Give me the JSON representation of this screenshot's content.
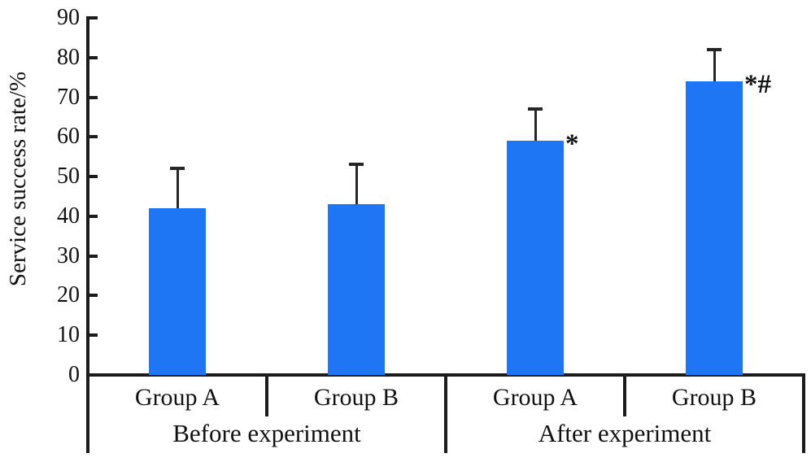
{
  "figure": {
    "background": "#ffffff"
  },
  "chart_data": {
    "type": "bar",
    "title": "",
    "ylabel": "Service success rate/%",
    "xlabel": "",
    "ylim": [
      0,
      90
    ],
    "ytick_step": 10,
    "yticks": [
      0,
      10,
      20,
      30,
      40,
      50,
      60,
      70,
      80,
      90
    ],
    "grid": false,
    "categories": [
      "Group A",
      "Group B",
      "Group A",
      "Group B"
    ],
    "groups": [
      {
        "label": "Before experiment",
        "bars": [
          {
            "category": "Group A",
            "value": 42,
            "error_plus": 10,
            "annotation": ""
          },
          {
            "category": "Group B",
            "value": 43,
            "error_plus": 10,
            "annotation": ""
          }
        ]
      },
      {
        "label": "After experiment",
        "bars": [
          {
            "category": "Group A",
            "value": 59,
            "error_plus": 8,
            "annotation": "*"
          },
          {
            "category": "Group B",
            "value": 74,
            "error_plus": 8,
            "annotation": "*#"
          }
        ]
      }
    ],
    "colors": {
      "bar": "#1e76f5",
      "axis": "#1b1b1b",
      "text": "#111111",
      "error_bar": "#262626"
    }
  }
}
